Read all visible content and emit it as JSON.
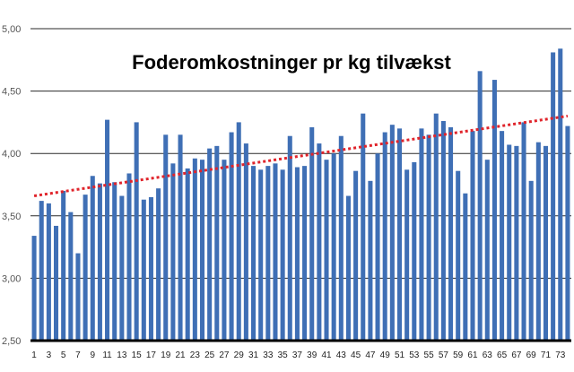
{
  "chart_data": {
    "type": "bar",
    "title": "Foderomkostninger pr kg tilvækst",
    "xlabel": "",
    "ylabel": "",
    "ylim": [
      2.5,
      5.0
    ],
    "yticks": [
      "2,50",
      "3,00",
      "3,50",
      "4,00",
      "4,50",
      "5,00"
    ],
    "ytick_values": [
      2.5,
      3.0,
      3.5,
      4.0,
      4.5,
      5.0
    ],
    "grid": true,
    "categories": [
      "1",
      "2",
      "3",
      "4",
      "5",
      "6",
      "7",
      "8",
      "9",
      "10",
      "11",
      "12",
      "13",
      "14",
      "15",
      "16",
      "17",
      "18",
      "19",
      "20",
      "21",
      "22",
      "23",
      "24",
      "25",
      "26",
      "27",
      "28",
      "29",
      "30",
      "31",
      "32",
      "33",
      "34",
      "35",
      "36",
      "37",
      "38",
      "39",
      "40",
      "41",
      "42",
      "43",
      "44",
      "45",
      "46",
      "47",
      "48",
      "49",
      "50",
      "51",
      "52",
      "53",
      "54",
      "55",
      "56",
      "57",
      "58",
      "59",
      "60",
      "61",
      "62",
      "63",
      "64",
      "65",
      "66",
      "67",
      "68",
      "69",
      "70",
      "71",
      "72",
      "73",
      "74"
    ],
    "visible_xtick_labels": [
      "1",
      "3",
      "5",
      "7",
      "9",
      "11",
      "13",
      "15",
      "17",
      "19",
      "21",
      "23",
      "25",
      "27",
      "29",
      "31",
      "33",
      "35",
      "37",
      "39",
      "41",
      "43",
      "45",
      "47",
      "49",
      "51",
      "53",
      "55",
      "57",
      "59",
      "61",
      "63",
      "65",
      "67",
      "69",
      "71",
      "73"
    ],
    "values": [
      3.34,
      3.62,
      3.6,
      3.42,
      3.7,
      3.53,
      3.2,
      3.67,
      3.82,
      3.76,
      4.27,
      3.77,
      3.66,
      3.84,
      4.25,
      3.63,
      3.65,
      3.72,
      4.15,
      3.92,
      4.15,
      3.88,
      3.96,
      3.95,
      4.04,
      4.06,
      3.95,
      4.17,
      4.25,
      4.08,
      3.9,
      3.87,
      3.9,
      3.92,
      3.87,
      4.14,
      3.89,
      3.9,
      4.21,
      4.08,
      3.95,
      4.0,
      4.14,
      3.66,
      3.86,
      4.32,
      3.78,
      4.0,
      4.17,
      4.23,
      4.2,
      3.87,
      3.93,
      4.2,
      4.15,
      4.32,
      4.26,
      4.21,
      3.86,
      3.68,
      4.18,
      4.66,
      3.95,
      4.59,
      4.18,
      4.07,
      4.06,
      4.25,
      3.78,
      4.09,
      4.06,
      4.81,
      4.84,
      4.22
    ],
    "trendline": {
      "style": "dotted",
      "color": "#e0242b",
      "start": 3.66,
      "end": 4.3
    },
    "bar_color": "#3f6fb5"
  }
}
